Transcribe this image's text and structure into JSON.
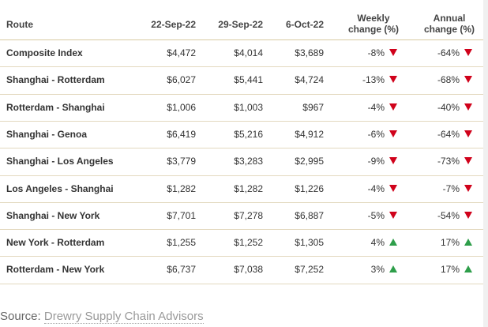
{
  "table": {
    "header": [
      "Route",
      "22-Sep-22",
      "29-Sep-22",
      "6-Oct-22",
      "Weekly change (%)",
      "Annual change (%)"
    ],
    "rows": [
      [
        "Composite Index",
        "$4,472",
        "$4,014",
        "$3,689",
        "-8%",
        "-64%"
      ],
      [
        "Shanghai - Rotterdam",
        "$6,027",
        "$5,441",
        "$4,724",
        "-13%",
        "-68%"
      ],
      [
        "Rotterdam - Shanghai",
        "$1,006",
        "$1,003",
        "$967",
        "-4%",
        "-40%"
      ],
      [
        "Shanghai - Genoa",
        "$6,419",
        "$5,216",
        "$4,912",
        "-6%",
        "-64%"
      ],
      [
        "Shanghai - Los Angeles",
        "$3,779",
        "$3,283",
        "$2,995",
        "-9%",
        "-73%"
      ],
      [
        "Los Angeles - Shanghai",
        "$1,282",
        "$1,282",
        "$1,226",
        "-4%",
        "-7%"
      ],
      [
        "Shanghai - New York",
        "$7,701",
        "$7,278",
        "$6,887",
        "-5%",
        "-54%"
      ],
      [
        "New York - Rotterdam",
        "$1,255",
        "$1,252",
        "$1,305",
        "4%",
        "17%"
      ],
      [
        "Rotterdam - New York",
        "$6,737",
        "$7,038",
        "$7,252",
        "3%",
        "17%"
      ]
    ]
  },
  "source": {
    "label": "Source:",
    "link": "Drewry Supply Chain Advisors"
  }
}
